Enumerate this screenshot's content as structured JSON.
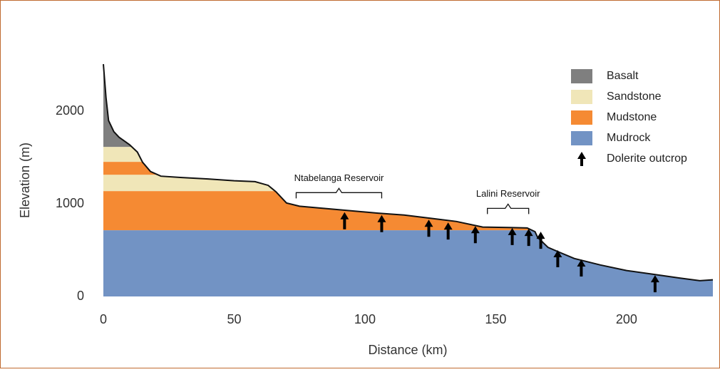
{
  "chart_data": {
    "type": "cross-section",
    "x_label": "Distance (km)",
    "y_label": "Elevation (m)",
    "xlim": [
      0,
      233
    ],
    "ylim": [
      0,
      2510
    ],
    "xticks": [
      0,
      50,
      100,
      150,
      200
    ],
    "yticks": [
      0,
      1000,
      2000
    ],
    "surface": {
      "x": [
        0,
        1,
        2,
        4,
        6,
        8,
        10,
        13,
        15,
        18,
        22,
        30,
        40,
        50,
        58,
        63,
        66,
        70,
        75,
        85,
        95,
        105,
        115,
        125,
        135,
        145,
        155,
        162,
        165,
        166,
        170,
        175,
        180,
        190,
        200,
        210,
        220,
        228,
        233
      ],
      "y": [
        2510,
        2150,
        1900,
        1780,
        1720,
        1680,
        1640,
        1560,
        1450,
        1350,
        1300,
        1285,
        1270,
        1250,
        1240,
        1200,
        1130,
        1010,
        975,
        950,
        925,
        900,
        880,
        845,
        810,
        750,
        745,
        740,
        700,
        640,
        530,
        470,
        410,
        340,
        280,
        240,
        200,
        170,
        180
      ]
    },
    "series": [
      {
        "name": "Basalt",
        "color": "#7f7f7f",
        "bands": [
          [
            1615,
            2510
          ]
        ]
      },
      {
        "name": "Sandstone",
        "color": "#f0e6b8",
        "bands": [
          [
            1138,
            1315
          ],
          [
            1454,
            1615
          ]
        ]
      },
      {
        "name": "Mudstone",
        "color": "#f58a33",
        "bands": [
          [
            715,
            1138
          ],
          [
            1315,
            1454
          ]
        ]
      },
      {
        "name": "Mudrock",
        "color": "#7293c4",
        "bands": [
          [
            0,
            715
          ]
        ]
      }
    ],
    "outcrops": {
      "name": "Dolerite outcrop",
      "x": [
        92.2,
        106.4,
        124.4,
        131.8,
        142.2,
        156.3,
        162.6,
        167.2,
        173.7,
        182.7,
        210.9
      ],
      "y": [
        910,
        880,
        830,
        800,
        760,
        740,
        730,
        700,
        500,
        400,
        230
      ]
    },
    "annotations": [
      {
        "text": "Ntabelanga Reservoir",
        "x": [
          73.7,
          106.4
        ],
        "y": 1060
      },
      {
        "text": "Lalini Reservoir",
        "x": [
          146.8,
          162.6
        ],
        "y": 890
      }
    ]
  }
}
